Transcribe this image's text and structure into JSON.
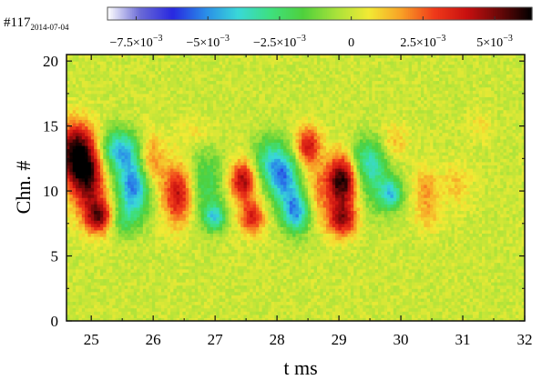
{
  "shot": {
    "number": "#117",
    "date": "2014-07-04"
  },
  "chart_data": {
    "type": "heatmap",
    "title": "",
    "xlabel": "t ms",
    "ylabel": "Chn. #",
    "xlim": [
      24.6,
      32.0
    ],
    "ylim": [
      0,
      20.5
    ],
    "x_ticks": [
      25,
      26,
      27,
      28,
      29,
      30,
      31,
      32
    ],
    "y_ticks": [
      0,
      5,
      10,
      15,
      20
    ],
    "grid": false,
    "colorbar": {
      "placement": "top",
      "range": [
        -0.0085,
        0.0063
      ],
      "ticks": [
        {
          "value": -0.0075,
          "mantissa": "−7.5",
          "base": "×10",
          "exp": "−3"
        },
        {
          "value": -0.005,
          "mantissa": "−5",
          "base": "×10",
          "exp": "−3"
        },
        {
          "value": -0.0025,
          "mantissa": "−2.5",
          "base": "×10",
          "exp": "−3"
        },
        {
          "value": 0,
          "mantissa": "0",
          "base": "",
          "exp": ""
        },
        {
          "value": 0.0025,
          "mantissa": "2.5",
          "base": "×10",
          "exp": "−3"
        },
        {
          "value": 0.005,
          "mantissa": "5",
          "base": "×10",
          "exp": "−3"
        }
      ],
      "colormap": [
        "#ffffff",
        "#6a6ad6",
        "#2828e0",
        "#2a8ce8",
        "#39d8d8",
        "#3ee07e",
        "#4fd03c",
        "#a8e23a",
        "#f2ea34",
        "#f8a026",
        "#f03a1a",
        "#c81010",
        "#6a0808",
        "#000000"
      ]
    },
    "background_value": 0.0,
    "features": [
      {
        "t": 24.75,
        "chn": 13.0,
        "value": 0.0058,
        "st": 0.22,
        "sc": 1.6
      },
      {
        "t": 24.95,
        "chn": 10.8,
        "value": 0.0045,
        "st": 0.2,
        "sc": 1.8
      },
      {
        "t": 25.15,
        "chn": 8.0,
        "value": 0.0052,
        "st": 0.17,
        "sc": 0.9
      },
      {
        "t": 25.45,
        "chn": 13.2,
        "value": -0.0044,
        "st": 0.22,
        "sc": 1.1
      },
      {
        "t": 25.7,
        "chn": 10.4,
        "value": -0.0055,
        "st": 0.2,
        "sc": 1.5
      },
      {
        "t": 25.45,
        "chn": 7.8,
        "value": -0.0022,
        "st": 0.22,
        "sc": 0.9
      },
      {
        "t": 25.95,
        "chn": 12.0,
        "value": 0.0028,
        "st": 0.15,
        "sc": 1.6
      },
      {
        "t": 26.4,
        "chn": 9.8,
        "value": 0.0042,
        "st": 0.17,
        "sc": 1.6
      },
      {
        "t": 26.85,
        "chn": 10.5,
        "value": -0.0022,
        "st": 0.2,
        "sc": 2.0
      },
      {
        "t": 27.0,
        "chn": 8.0,
        "value": -0.0035,
        "st": 0.12,
        "sc": 0.7
      },
      {
        "t": 27.45,
        "chn": 10.8,
        "value": 0.0045,
        "st": 0.15,
        "sc": 1.1
      },
      {
        "t": 27.6,
        "chn": 8.0,
        "value": 0.0036,
        "st": 0.14,
        "sc": 0.9
      },
      {
        "t": 27.9,
        "chn": 12.5,
        "value": -0.003,
        "st": 0.2,
        "sc": 1.3
      },
      {
        "t": 28.1,
        "chn": 11.0,
        "value": -0.0042,
        "st": 0.18,
        "sc": 1.3
      },
      {
        "t": 28.3,
        "chn": 8.5,
        "value": -0.005,
        "st": 0.16,
        "sc": 1.2
      },
      {
        "t": 28.5,
        "chn": 13.5,
        "value": 0.004,
        "st": 0.14,
        "sc": 1.0
      },
      {
        "t": 28.65,
        "chn": 10.0,
        "value": 0.0018,
        "st": 0.15,
        "sc": 1.5
      },
      {
        "t": 29.05,
        "chn": 10.8,
        "value": 0.0062,
        "st": 0.17,
        "sc": 1.4
      },
      {
        "t": 29.05,
        "chn": 7.8,
        "value": 0.0042,
        "st": 0.17,
        "sc": 0.9
      },
      {
        "t": 29.45,
        "chn": 12.5,
        "value": -0.0028,
        "st": 0.2,
        "sc": 1.2
      },
      {
        "t": 29.6,
        "chn": 10.5,
        "value": -0.002,
        "st": 0.2,
        "sc": 1.6
      },
      {
        "t": 29.85,
        "chn": 9.8,
        "value": -0.0036,
        "st": 0.12,
        "sc": 0.8
      },
      {
        "t": 29.9,
        "chn": 13.8,
        "value": 0.0014,
        "st": 0.15,
        "sc": 0.9
      },
      {
        "t": 30.4,
        "chn": 10.2,
        "value": 0.0018,
        "st": 0.13,
        "sc": 1.2
      },
      {
        "t": 30.45,
        "chn": 8.0,
        "value": 0.0011,
        "st": 0.15,
        "sc": 0.8
      },
      {
        "t": 30.9,
        "chn": 10.5,
        "value": 0.0012,
        "st": 0.18,
        "sc": 1.2
      },
      {
        "t": 31.3,
        "chn": 15.0,
        "value": 0.0008,
        "st": 0.12,
        "sc": 0.8
      },
      {
        "t": 26.7,
        "chn": 14.5,
        "value": 0.0008,
        "st": 0.2,
        "sc": 0.8
      }
    ]
  }
}
